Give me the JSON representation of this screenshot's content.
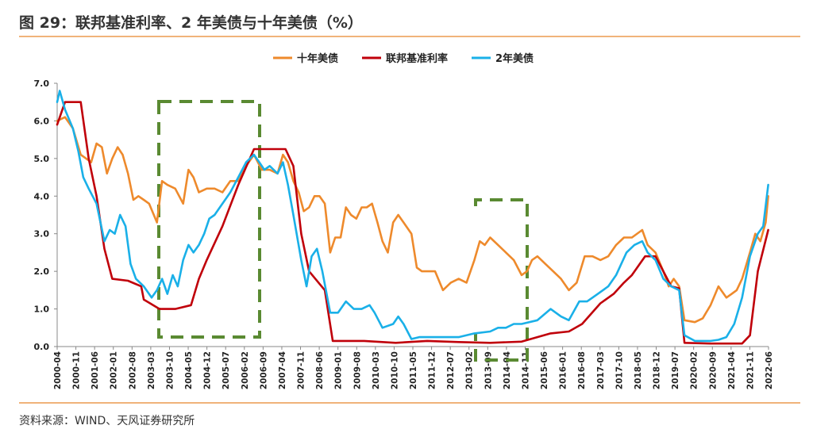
{
  "header": {
    "title": "图 29：联邦基准利率、2 年美债与十年美债（%）"
  },
  "footer": {
    "source": "资料来源：WIND、天风证券研究所"
  },
  "chart_data": {
    "type": "line",
    "title": "",
    "xlabel": "",
    "ylabel": "",
    "ylim": [
      0,
      7
    ],
    "yticks": [
      "0.0",
      "1.0",
      "2.0",
      "3.0",
      "4.0",
      "5.0",
      "6.0",
      "7.0"
    ],
    "grid": false,
    "legend": "top-center",
    "x_labels": [
      "2000-04",
      "2000-11",
      "2001-06",
      "2002-01",
      "2002-08",
      "2003-03",
      "2003-10",
      "2004-05",
      "2004-12",
      "2005-07",
      "2006-02",
      "2006-09",
      "2007-04",
      "2007-11",
      "2008-06",
      "2009-01",
      "2009-08",
      "2010-03",
      "2010-10",
      "2011-05",
      "2011-12",
      "2012-07",
      "2013-02",
      "2013-09",
      "2014-04",
      "2014-11",
      "2015-06",
      "2016-01",
      "2016-08",
      "2017-03",
      "2017-10",
      "2018-05",
      "2018-12",
      "2019-07",
      "2020-02",
      "2020-09",
      "2021-04",
      "2021-11",
      "2022-06"
    ],
    "series": [
      {
        "name": "十年美债",
        "color": "#ee8a2c",
        "points": [
          [
            2000.25,
            6.0
          ],
          [
            2000.5,
            6.1
          ],
          [
            2000.75,
            5.8
          ],
          [
            2001.0,
            5.1
          ],
          [
            2001.17,
            5.0
          ],
          [
            2001.33,
            4.9
          ],
          [
            2001.5,
            5.4
          ],
          [
            2001.67,
            5.3
          ],
          [
            2001.83,
            4.6
          ],
          [
            2002.0,
            5.0
          ],
          [
            2002.17,
            5.3
          ],
          [
            2002.33,
            5.1
          ],
          [
            2002.5,
            4.6
          ],
          [
            2002.67,
            3.9
          ],
          [
            2002.83,
            4.0
          ],
          [
            2003.0,
            3.9
          ],
          [
            2003.17,
            3.8
          ],
          [
            2003.42,
            3.3
          ],
          [
            2003.58,
            4.4
          ],
          [
            2003.75,
            4.3
          ],
          [
            2004.0,
            4.2
          ],
          [
            2004.25,
            3.8
          ],
          [
            2004.42,
            4.7
          ],
          [
            2004.58,
            4.5
          ],
          [
            2004.75,
            4.1
          ],
          [
            2005.0,
            4.2
          ],
          [
            2005.25,
            4.2
          ],
          [
            2005.5,
            4.1
          ],
          [
            2005.75,
            4.4
          ],
          [
            2006.0,
            4.4
          ],
          [
            2006.25,
            4.8
          ],
          [
            2006.5,
            5.1
          ],
          [
            2006.75,
            4.7
          ],
          [
            2007.0,
            4.7
          ],
          [
            2007.25,
            4.6
          ],
          [
            2007.42,
            5.1
          ],
          [
            2007.58,
            4.9
          ],
          [
            2007.75,
            4.4
          ],
          [
            2007.92,
            4.1
          ],
          [
            2008.08,
            3.6
          ],
          [
            2008.25,
            3.7
          ],
          [
            2008.42,
            4.0
          ],
          [
            2008.58,
            4.0
          ],
          [
            2008.75,
            3.8
          ],
          [
            2008.92,
            2.5
          ],
          [
            2009.08,
            2.9
          ],
          [
            2009.25,
            2.9
          ],
          [
            2009.42,
            3.7
          ],
          [
            2009.58,
            3.5
          ],
          [
            2009.75,
            3.4
          ],
          [
            2009.92,
            3.7
          ],
          [
            2010.08,
            3.7
          ],
          [
            2010.25,
            3.8
          ],
          [
            2010.42,
            3.3
          ],
          [
            2010.58,
            2.8
          ],
          [
            2010.75,
            2.5
          ],
          [
            2010.92,
            3.3
          ],
          [
            2011.08,
            3.5
          ],
          [
            2011.25,
            3.3
          ],
          [
            2011.5,
            3.0
          ],
          [
            2011.67,
            2.1
          ],
          [
            2011.83,
            2.0
          ],
          [
            2012.0,
            2.0
          ],
          [
            2012.25,
            2.0
          ],
          [
            2012.5,
            1.5
          ],
          [
            2012.75,
            1.7
          ],
          [
            2013.0,
            1.8
          ],
          [
            2013.25,
            1.7
          ],
          [
            2013.5,
            2.3
          ],
          [
            2013.67,
            2.8
          ],
          [
            2013.83,
            2.7
          ],
          [
            2014.0,
            2.9
          ],
          [
            2014.25,
            2.7
          ],
          [
            2014.5,
            2.5
          ],
          [
            2014.75,
            2.3
          ],
          [
            2015.0,
            1.9
          ],
          [
            2015.17,
            2.0
          ],
          [
            2015.33,
            2.3
          ],
          [
            2015.5,
            2.4
          ],
          [
            2015.75,
            2.2
          ],
          [
            2016.0,
            2.0
          ],
          [
            2016.25,
            1.8
          ],
          [
            2016.5,
            1.5
          ],
          [
            2016.75,
            1.7
          ],
          [
            2017.0,
            2.4
          ],
          [
            2017.25,
            2.4
          ],
          [
            2017.5,
            2.3
          ],
          [
            2017.75,
            2.4
          ],
          [
            2018.0,
            2.7
          ],
          [
            2018.25,
            2.9
          ],
          [
            2018.5,
            2.9
          ],
          [
            2018.83,
            3.1
          ],
          [
            2019.0,
            2.7
          ],
          [
            2019.25,
            2.5
          ],
          [
            2019.5,
            2.0
          ],
          [
            2019.67,
            1.6
          ],
          [
            2019.83,
            1.8
          ],
          [
            2020.0,
            1.6
          ],
          [
            2020.17,
            0.7
          ],
          [
            2020.5,
            0.65
          ],
          [
            2020.75,
            0.75
          ],
          [
            2021.0,
            1.1
          ],
          [
            2021.25,
            1.6
          ],
          [
            2021.5,
            1.3
          ],
          [
            2021.67,
            1.4
          ],
          [
            2021.83,
            1.5
          ],
          [
            2022.0,
            1.8
          ],
          [
            2022.25,
            2.5
          ],
          [
            2022.42,
            3.0
          ],
          [
            2022.58,
            2.8
          ],
          [
            2022.75,
            3.3
          ],
          [
            2022.83,
            4.0
          ]
        ]
      },
      {
        "name": "联邦基准利率",
        "color": "#c0000a",
        "points": [
          [
            2000.25,
            5.9
          ],
          [
            2000.5,
            6.5
          ],
          [
            2001.0,
            6.5
          ],
          [
            2001.25,
            5.0
          ],
          [
            2001.5,
            4.0
          ],
          [
            2001.75,
            2.6
          ],
          [
            2002.0,
            1.8
          ],
          [
            2002.5,
            1.75
          ],
          [
            2002.92,
            1.6
          ],
          [
            2003.0,
            1.25
          ],
          [
            2003.5,
            1.0
          ],
          [
            2004.0,
            1.0
          ],
          [
            2004.5,
            1.1
          ],
          [
            2004.75,
            1.8
          ],
          [
            2005.0,
            2.3
          ],
          [
            2005.5,
            3.2
          ],
          [
            2006.0,
            4.3
          ],
          [
            2006.5,
            5.25
          ],
          [
            2007.5,
            5.25
          ],
          [
            2007.75,
            4.8
          ],
          [
            2008.0,
            3.0
          ],
          [
            2008.25,
            2.0
          ],
          [
            2008.75,
            1.5
          ],
          [
            2009.0,
            0.15
          ],
          [
            2009.5,
            0.15
          ],
          [
            2010.0,
            0.15
          ],
          [
            2011.0,
            0.1
          ],
          [
            2012.0,
            0.15
          ],
          [
            2013.0,
            0.12
          ],
          [
            2014.0,
            0.1
          ],
          [
            2015.0,
            0.13
          ],
          [
            2015.92,
            0.35
          ],
          [
            2016.5,
            0.4
          ],
          [
            2016.92,
            0.6
          ],
          [
            2017.5,
            1.15
          ],
          [
            2017.92,
            1.4
          ],
          [
            2018.25,
            1.7
          ],
          [
            2018.5,
            1.9
          ],
          [
            2018.92,
            2.4
          ],
          [
            2019.25,
            2.4
          ],
          [
            2019.5,
            2.0
          ],
          [
            2019.75,
            1.6
          ],
          [
            2020.0,
            1.55
          ],
          [
            2020.17,
            0.1
          ],
          [
            2021.0,
            0.08
          ],
          [
            2022.0,
            0.08
          ],
          [
            2022.25,
            0.3
          ],
          [
            2022.5,
            2.0
          ],
          [
            2022.83,
            3.1
          ]
        ]
      },
      {
        "name": "2年美债",
        "color": "#1ab0e8",
        "points": [
          [
            2000.25,
            6.5
          ],
          [
            2000.33,
            6.8
          ],
          [
            2000.5,
            6.3
          ],
          [
            2000.75,
            5.8
          ],
          [
            2000.92,
            5.2
          ],
          [
            2001.08,
            4.5
          ],
          [
            2001.25,
            4.2
          ],
          [
            2001.5,
            3.8
          ],
          [
            2001.75,
            2.8
          ],
          [
            2001.92,
            3.1
          ],
          [
            2002.08,
            3.0
          ],
          [
            2002.25,
            3.5
          ],
          [
            2002.42,
            3.2
          ],
          [
            2002.58,
            2.2
          ],
          [
            2002.75,
            1.8
          ],
          [
            2003.0,
            1.6
          ],
          [
            2003.25,
            1.3
          ],
          [
            2003.42,
            1.5
          ],
          [
            2003.58,
            1.8
          ],
          [
            2003.75,
            1.4
          ],
          [
            2003.92,
            1.9
          ],
          [
            2004.08,
            1.6
          ],
          [
            2004.25,
            2.3
          ],
          [
            2004.42,
            2.7
          ],
          [
            2004.58,
            2.5
          ],
          [
            2004.75,
            2.7
          ],
          [
            2004.92,
            3.0
          ],
          [
            2005.08,
            3.4
          ],
          [
            2005.25,
            3.5
          ],
          [
            2005.5,
            3.8
          ],
          [
            2005.75,
            4.1
          ],
          [
            2006.0,
            4.5
          ],
          [
            2006.25,
            4.9
          ],
          [
            2006.5,
            5.1
          ],
          [
            2006.67,
            4.9
          ],
          [
            2006.83,
            4.7
          ],
          [
            2007.0,
            4.8
          ],
          [
            2007.25,
            4.6
          ],
          [
            2007.42,
            4.9
          ],
          [
            2007.58,
            4.3
          ],
          [
            2007.75,
            3.5
          ],
          [
            2008.0,
            2.3
          ],
          [
            2008.17,
            1.6
          ],
          [
            2008.33,
            2.4
          ],
          [
            2008.5,
            2.6
          ],
          [
            2008.67,
            2.0
          ],
          [
            2008.92,
            0.9
          ],
          [
            2009.17,
            0.9
          ],
          [
            2009.42,
            1.2
          ],
          [
            2009.67,
            1.0
          ],
          [
            2009.92,
            1.0
          ],
          [
            2010.17,
            1.1
          ],
          [
            2010.33,
            0.9
          ],
          [
            2010.58,
            0.5
          ],
          [
            2010.92,
            0.6
          ],
          [
            2011.08,
            0.8
          ],
          [
            2011.25,
            0.6
          ],
          [
            2011.5,
            0.2
          ],
          [
            2011.75,
            0.25
          ],
          [
            2012.0,
            0.25
          ],
          [
            2012.5,
            0.25
          ],
          [
            2013.0,
            0.25
          ],
          [
            2013.5,
            0.35
          ],
          [
            2014.0,
            0.4
          ],
          [
            2014.25,
            0.5
          ],
          [
            2014.5,
            0.5
          ],
          [
            2014.75,
            0.6
          ],
          [
            2015.0,
            0.6
          ],
          [
            2015.5,
            0.7
          ],
          [
            2015.92,
            1.0
          ],
          [
            2016.25,
            0.8
          ],
          [
            2016.5,
            0.7
          ],
          [
            2016.83,
            1.2
          ],
          [
            2017.08,
            1.2
          ],
          [
            2017.42,
            1.4
          ],
          [
            2017.75,
            1.6
          ],
          [
            2018.0,
            1.9
          ],
          [
            2018.33,
            2.5
          ],
          [
            2018.58,
            2.7
          ],
          [
            2018.83,
            2.8
          ],
          [
            2019.0,
            2.5
          ],
          [
            2019.25,
            2.3
          ],
          [
            2019.5,
            1.8
          ],
          [
            2019.75,
            1.6
          ],
          [
            2020.0,
            1.5
          ],
          [
            2020.17,
            0.3
          ],
          [
            2020.5,
            0.15
          ],
          [
            2020.75,
            0.15
          ],
          [
            2021.0,
            0.15
          ],
          [
            2021.25,
            0.18
          ],
          [
            2021.5,
            0.25
          ],
          [
            2021.75,
            0.6
          ],
          [
            2022.0,
            1.3
          ],
          [
            2022.25,
            2.4
          ],
          [
            2022.5,
            3.0
          ],
          [
            2022.67,
            3.2
          ],
          [
            2022.83,
            4.3
          ]
        ]
      }
    ]
  }
}
